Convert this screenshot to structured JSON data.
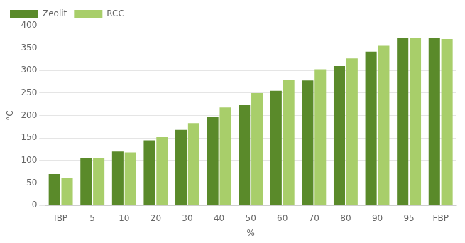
{
  "chart_data": {
    "type": "bar",
    "categories": [
      "IBP",
      "5",
      "10",
      "20",
      "30",
      "40",
      "50",
      "60",
      "70",
      "80",
      "90",
      "95",
      "FBP"
    ],
    "series": [
      {
        "name": "Zeolit",
        "color": "#5a8a2a",
        "values": [
          70,
          105,
          120,
          145,
          168,
          197,
          223,
          255,
          278,
          310,
          342,
          373,
          372
        ]
      },
      {
        "name": "RCC",
        "color": "#a8ce6a",
        "values": [
          62,
          105,
          118,
          152,
          183,
          218,
          250,
          280,
          303,
          327,
          355,
          373,
          370
        ]
      }
    ],
    "xlabel": "%",
    "ylabel": "°C",
    "ylim": [
      0,
      400
    ],
    "yticks": [
      0,
      50,
      100,
      150,
      200,
      250,
      300,
      350,
      400
    ],
    "grid": true,
    "legend": "upper left"
  }
}
